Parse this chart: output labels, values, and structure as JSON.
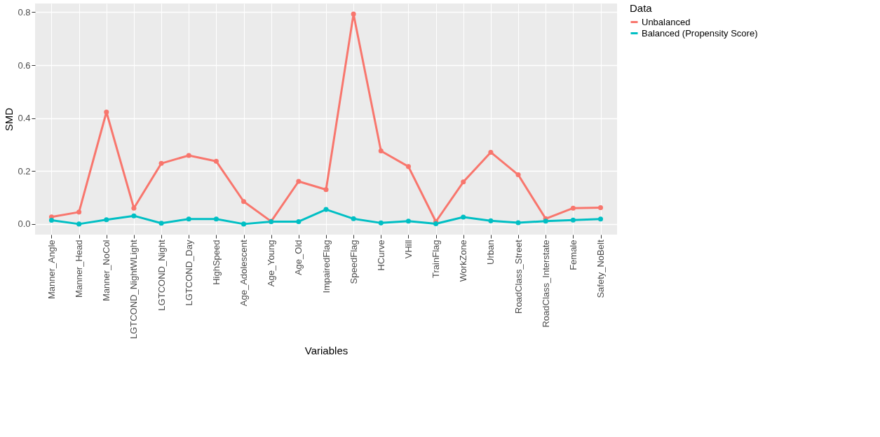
{
  "chart_data": {
    "type": "line",
    "xlabel": "Variables",
    "ylabel": "SMD",
    "legend_title": "Data",
    "categories": [
      "Manner_Angle",
      "Manner_Head",
      "Manner_NoCol",
      "LGTCOND_NightWLight",
      "LGTCOND_Night",
      "LGTCOND_Day",
      "HighSpeed",
      "Age_Adolescent",
      "Age_Young",
      "Age_Old",
      "ImpairedFlag",
      "SpeedFlag",
      "HCurve",
      "VHill",
      "TrainFlag",
      "WorkZone",
      "Urban",
      "RoadClass_Street",
      "RoadClass_Interstate",
      "Female",
      "Safety_NoBelt"
    ],
    "series": [
      {
        "name": "Unbalanced",
        "color": "#f8766d",
        "values": [
          0.027,
          0.045,
          0.423,
          0.06,
          0.229,
          0.259,
          0.237,
          0.085,
          0.01,
          0.161,
          0.13,
          0.793,
          0.276,
          0.217,
          0.009,
          0.159,
          0.271,
          0.186,
          0.02,
          0.06,
          0.062
        ]
      },
      {
        "name": "Balanced (Propensity Score)",
        "color": "#00bfc4",
        "values": [
          0.014,
          0.0,
          0.016,
          0.031,
          0.003,
          0.019,
          0.019,
          0.0,
          0.009,
          0.009,
          0.055,
          0.02,
          0.004,
          0.011,
          0.001,
          0.026,
          0.012,
          0.005,
          0.011,
          0.015,
          0.019
        ]
      }
    ],
    "ylim": [
      -0.04,
      0.833
    ],
    "yticks": [
      {
        "value": 0,
        "label": "0.0"
      },
      {
        "value": 0.2,
        "label": "0.2"
      },
      {
        "value": 0.4,
        "label": "0.4"
      },
      {
        "value": 0.6,
        "label": "0.6"
      },
      {
        "value": 0.8,
        "label": "0.8"
      }
    ],
    "grid": true,
    "legend": "right",
    "marker": "circle",
    "line_style": "solid"
  }
}
